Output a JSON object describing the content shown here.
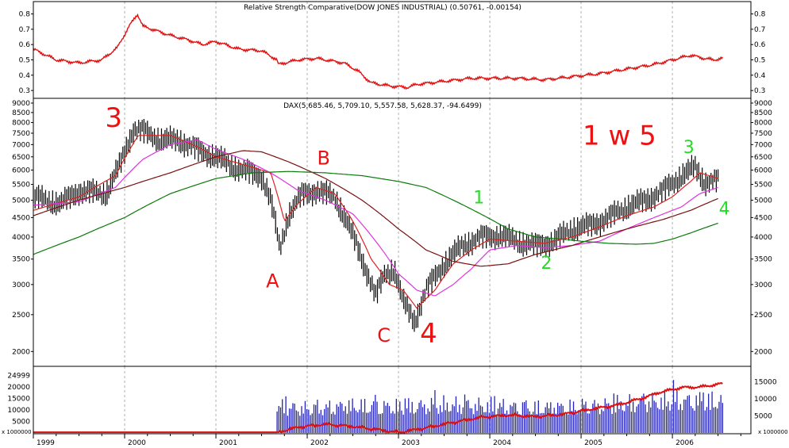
{
  "chart_data": [
    {
      "type": "line",
      "title": "Relative Strength Comparative(DOW JONES INDUSTRIAL) (0.50761, -0.00154)",
      "ylim": [
        0.28,
        0.86
      ],
      "y_ticks": [
        "0.8",
        "0.7",
        "0.6",
        "0.5",
        "0.4",
        "0.3"
      ],
      "grid": true,
      "series": [
        {
          "color": "#e01010",
          "x": [
            1999.0,
            1999.25,
            1999.5,
            1999.75,
            1999.92,
            2000.05,
            2000.14,
            2000.2,
            2000.35,
            2000.5,
            2000.7,
            2000.85,
            2001.0,
            2001.25,
            2001.5,
            2001.67,
            2001.68,
            2001.9,
            2002.1,
            2002.4,
            2002.55,
            2002.7,
            2002.9,
            2003.1,
            2003.2,
            2003.5,
            2003.8,
            2004.0,
            2004.3,
            2004.6,
            2004.9,
            2005.2,
            2005.5,
            2005.8,
            2006.0,
            2006.2,
            2006.35,
            2006.45,
            2006.55
          ],
          "values": [
            0.57,
            0.5,
            0.48,
            0.5,
            0.58,
            0.72,
            0.8,
            0.72,
            0.69,
            0.66,
            0.63,
            0.6,
            0.62,
            0.57,
            0.56,
            0.5,
            0.47,
            0.5,
            0.51,
            0.48,
            0.43,
            0.35,
            0.33,
            0.32,
            0.34,
            0.36,
            0.38,
            0.38,
            0.38,
            0.37,
            0.39,
            0.41,
            0.44,
            0.47,
            0.5,
            0.53,
            0.51,
            0.5,
            0.51
          ]
        }
      ]
    },
    {
      "type": "line",
      "title": "DAX(5,685.46, 5,709.10, 5,557.58, 5,628.37, -94.6499)",
      "y_scale": "log",
      "ylim": [
        1900,
        9000
      ],
      "y_ticks": [
        9000,
        8500,
        8000,
        7500,
        7000,
        6500,
        6000,
        5500,
        5000,
        4500,
        4000,
        3500,
        3000,
        2500,
        2000
      ],
      "x_ticks": [
        "1999",
        "2000",
        "2001",
        "2002",
        "2003",
        "2004",
        "2005",
        "2006"
      ],
      "grid": true,
      "series": [
        {
          "color": "#000000",
          "x": [
            1999.0,
            1999.3,
            1999.5,
            1999.8,
            1999.95,
            2000.1,
            2000.2,
            2000.4,
            2000.6,
            2000.8,
            2001.0,
            2001.15,
            2001.3,
            2001.5,
            2001.6,
            2001.7,
            2001.8,
            2001.95,
            2002.1,
            2002.3,
            2002.45,
            2002.6,
            2002.75,
            2002.85,
            2002.95,
            2003.05,
            2003.18,
            2003.3,
            2003.5,
            2003.7,
            2003.9,
            2004.1,
            2004.3,
            2004.5,
            2004.7,
            2004.9,
            2005.1,
            2005.3,
            2005.5,
            2005.7,
            2005.9,
            2006.1,
            2006.25,
            2006.35,
            2006.5
          ],
          "values": [
            5100,
            4900,
            5300,
            5200,
            6200,
            7700,
            7600,
            7200,
            7200,
            6800,
            6500,
            6200,
            6000,
            5800,
            5000,
            3700,
            4600,
            5200,
            5300,
            5100,
            4300,
            3500,
            2800,
            3200,
            3300,
            2700,
            2400,
            2900,
            3400,
            3800,
            4000,
            4050,
            3900,
            3800,
            3900,
            4200,
            4300,
            4500,
            4800,
            5000,
            5300,
            5800,
            6100,
            5600,
            5630
          ]
        },
        {
          "color": "#dd2222",
          "x": [
            1999.0,
            1999.5,
            1999.9,
            2000.15,
            2000.5,
            2000.8,
            2001.0,
            2001.3,
            2001.6,
            2001.75,
            2001.9,
            2002.1,
            2002.3,
            2002.5,
            2002.7,
            2002.9,
            2003.05,
            2003.2,
            2003.4,
            2003.6,
            2003.8,
            2004.0,
            2004.3,
            2004.6,
            2004.9,
            2005.2,
            2005.5,
            2005.8,
            2006.0,
            2006.2,
            2006.3,
            2006.5
          ],
          "values": [
            4700,
            5100,
            5800,
            7400,
            7400,
            6900,
            6500,
            6200,
            5900,
            4400,
            4900,
            5400,
            5200,
            4400,
            3500,
            3000,
            2900,
            2600,
            2900,
            3400,
            3700,
            3950,
            3900,
            3850,
            4000,
            4250,
            4550,
            4800,
            5100,
            5600,
            5900,
            5700
          ]
        },
        {
          "color": "#dd33dd",
          "x": [
            1999.0,
            1999.5,
            1999.9,
            2000.2,
            2000.5,
            2000.8,
            2001.0,
            2001.3,
            2001.6,
            2001.9,
            2002.2,
            2002.5,
            2002.75,
            2003.0,
            2003.2,
            2003.4,
            2003.6,
            2003.8,
            2004.0,
            2004.3,
            2004.6,
            2004.9,
            2005.2,
            2005.5,
            2005.8,
            2006.1,
            2006.3,
            2006.5
          ],
          "values": [
            4850,
            4950,
            5400,
            6400,
            7000,
            7200,
            6800,
            6400,
            5900,
            5300,
            5000,
            4600,
            3900,
            3200,
            2900,
            2800,
            3000,
            3300,
            3700,
            3800,
            3750,
            3800,
            3900,
            4200,
            4500,
            4800,
            5200,
            5400
          ]
        },
        {
          "color": "#7a1010",
          "x": [
            1999.0,
            1999.5,
            2000.0,
            2000.5,
            2001.0,
            2001.3,
            2001.5,
            2001.8,
            2002.2,
            2002.6,
            2003.0,
            2003.3,
            2003.6,
            2003.9,
            2004.2,
            2004.5,
            2004.9,
            2005.2,
            2005.5,
            2005.9,
            2006.2,
            2006.5
          ],
          "values": [
            4550,
            5000,
            5400,
            5900,
            6500,
            6750,
            6700,
            6300,
            5700,
            5000,
            4200,
            3700,
            3450,
            3350,
            3400,
            3600,
            3800,
            4000,
            4200,
            4450,
            4700,
            5050
          ]
        },
        {
          "color": "#0a7a0a",
          "x": [
            1999.0,
            1999.5,
            2000.0,
            2000.5,
            2001.0,
            2001.4,
            2001.8,
            2002.2,
            2002.6,
            2003.0,
            2003.3,
            2003.6,
            2003.9,
            2004.2,
            2004.5,
            2004.8,
            2005.0,
            2005.3,
            2005.6,
            2005.8,
            2006.0,
            2006.2,
            2006.5
          ],
          "values": [
            3600,
            4000,
            4500,
            5200,
            5700,
            5900,
            5950,
            5900,
            5800,
            5600,
            5400,
            5000,
            4600,
            4200,
            4000,
            3950,
            3900,
            3850,
            3830,
            3850,
            3950,
            4100,
            4350
          ]
        }
      ],
      "annotations": [
        {
          "text": "3",
          "x": 1999.88,
          "y": 7800,
          "color": "#ee1111",
          "size": 34
        },
        {
          "text": "A",
          "x": 2001.62,
          "y": 2950,
          "color": "#ee1111",
          "size": 24
        },
        {
          "text": "B",
          "x": 2002.18,
          "y": 6200,
          "color": "#ee1111",
          "size": 24
        },
        {
          "text": "C",
          "x": 2002.84,
          "y": 2120,
          "color": "#ee1111",
          "size": 24
        },
        {
          "text": "4",
          "x": 2003.33,
          "y": 2110,
          "color": "#ee1111",
          "size": 34
        },
        {
          "text": "1 w 5",
          "x": 2005.42,
          "y": 7000,
          "color": "#ee1111",
          "size": 34
        },
        {
          "text": "3",
          "x": 2006.18,
          "y": 6650,
          "color": "#22dd22",
          "size": 22
        },
        {
          "text": "1",
          "x": 2003.88,
          "y": 4900,
          "color": "#22dd22",
          "size": 22
        },
        {
          "text": "2",
          "x": 2004.62,
          "y": 3300,
          "color": "#22dd22",
          "size": 22
        },
        {
          "text": "4",
          "x": 2006.57,
          "y": 4580,
          "color": "#22dd22",
          "size": 22
        }
      ]
    },
    {
      "type": "bar",
      "ylim": [
        0,
        28000
      ],
      "y_ticks_left": [
        "24999",
        "20000",
        "15000",
        "10000",
        "5000"
      ],
      "y_ticks_right": [
        "15000",
        "10000",
        "5000"
      ],
      "scale_label": "x 1000000",
      "grid": true,
      "volume_start": 2001.67,
      "volume_end": 2006.55,
      "volume_color": "#2222bb",
      "volume_x": [
        2001.67,
        2002.0,
        2002.5,
        2003.0,
        2003.5,
        2004.0,
        2004.5,
        2005.0,
        2005.5,
        2006.0,
        2006.5
      ],
      "volume_values": [
        14000,
        13000,
        14500,
        14000,
        15000,
        14500,
        13500,
        14000,
        15500,
        17500,
        17000
      ],
      "series": [
        {
          "color": "#dd1111",
          "x": [
            1999.0,
            2001.67,
            2001.9,
            2002.2,
            2002.5,
            2002.8,
            2003.0,
            2003.3,
            2003.6,
            2003.9,
            2004.2,
            2004.5,
            2004.8,
            2005.1,
            2005.4,
            2005.7,
            2005.85,
            2006.1,
            2006.3,
            2006.55
          ],
          "values": [
            300,
            300,
            2500,
            3800,
            2800,
            1300,
            200,
            2200,
            4600,
            6800,
            7800,
            7100,
            8100,
            10300,
            12200,
            15500,
            17600,
            19800,
            20000,
            21500
          ]
        }
      ]
    }
  ]
}
